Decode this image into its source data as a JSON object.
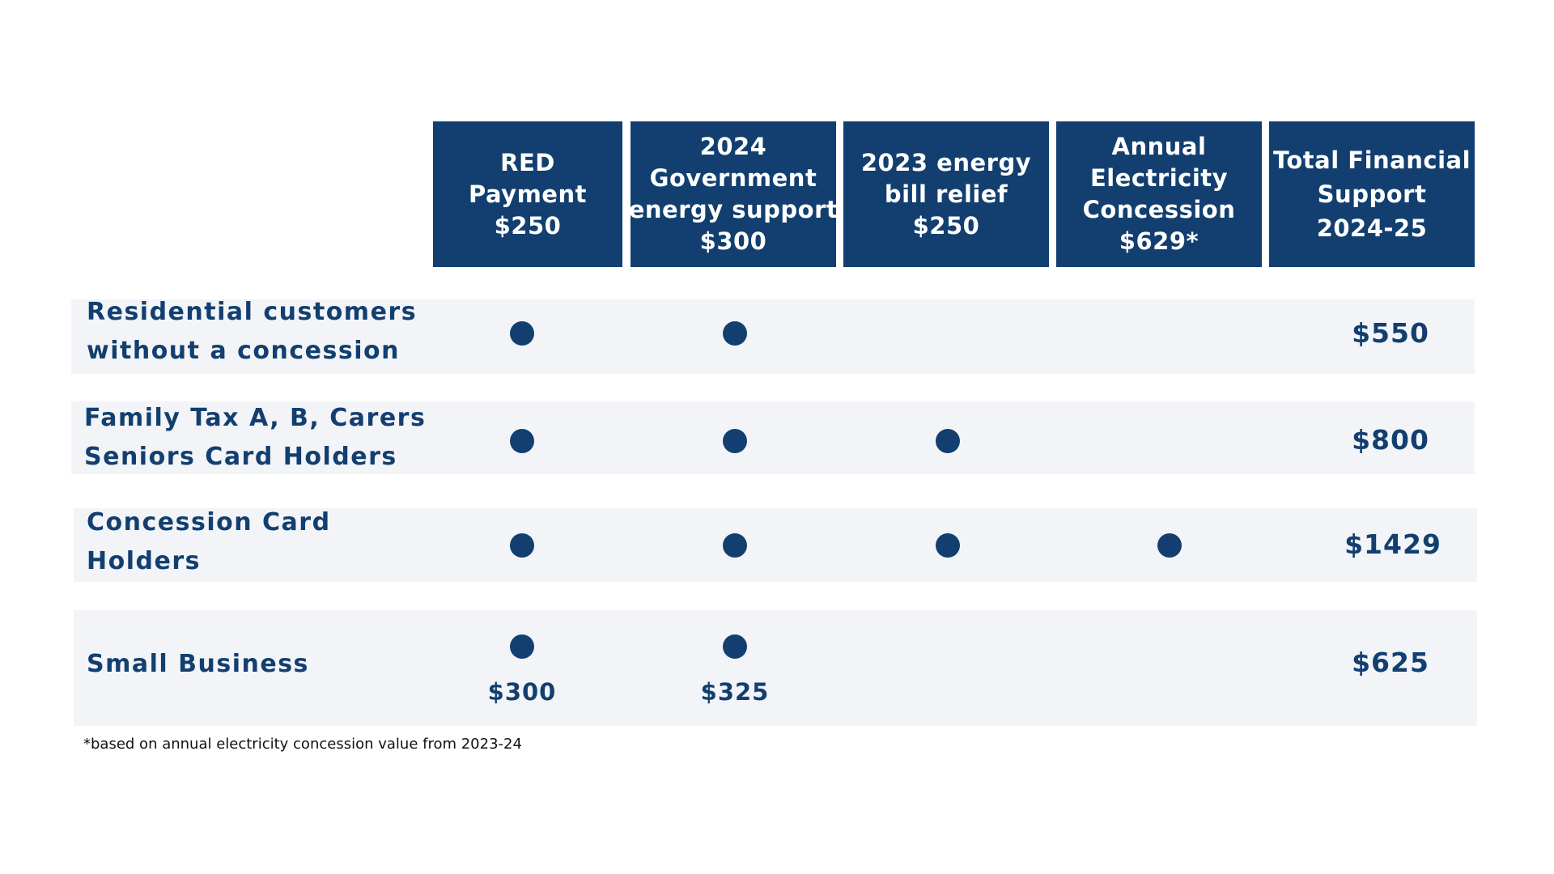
{
  "headers": [
    {
      "lines": [
        "RED",
        "Payment",
        "$250"
      ]
    },
    {
      "lines": [
        "2024",
        "Government",
        "energy support",
        "$300"
      ]
    },
    {
      "lines": [
        "2023 energy",
        "bill relief",
        "$250"
      ]
    },
    {
      "lines": [
        "Annual",
        "Electricity",
        "Concession",
        "$629*"
      ]
    },
    {
      "lines": [
        "Total Financial",
        "Support",
        "2024-25"
      ]
    }
  ],
  "rows": [
    {
      "label_lines": [
        "Residential customers",
        "without a concession"
      ],
      "included": [
        true,
        true,
        false,
        false
      ],
      "total": "$550"
    },
    {
      "label_lines": [
        "Family Tax A, B, Carers",
        "Seniors Card Holders"
      ],
      "included": [
        true,
        true,
        true,
        false
      ],
      "total": "$800"
    },
    {
      "label_lines": [
        "Concession Card",
        "Holders"
      ],
      "included": [
        true,
        true,
        true,
        true
      ],
      "total": "$1429"
    },
    {
      "label_lines": [
        "Small Business"
      ],
      "included": [
        true,
        true,
        false,
        false
      ],
      "amounts": [
        "$300",
        "$325"
      ],
      "total": "$625"
    }
  ],
  "footnote": "*based on annual electricity concession value from 2023-24",
  "colors": {
    "accent": "#123f6f",
    "row_background": "#f2f4f8",
    "header_text": "#ffffff"
  }
}
